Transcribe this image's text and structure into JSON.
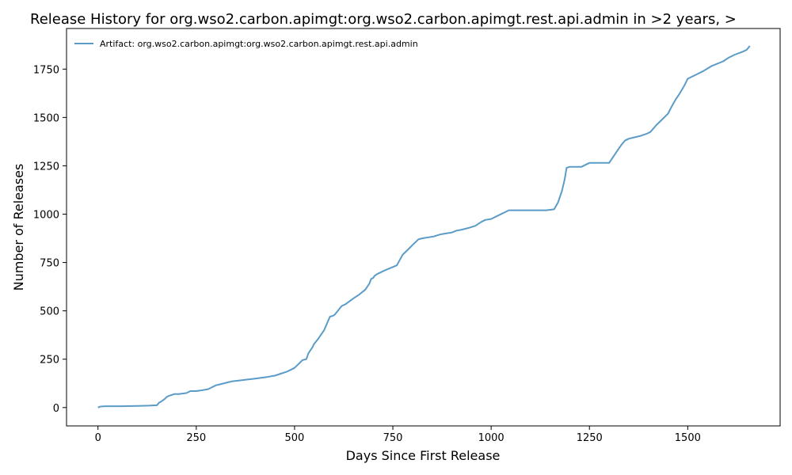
{
  "chart_data": {
    "type": "line",
    "title": "Release History for org.wso2.carbon.apimgt:org.wso2.carbon.apimgt.rest.api.admin in >2 years, >",
    "xlabel": "Days Since First Release",
    "ylabel": "Number of Releases",
    "xlim": [
      -80,
      1735
    ],
    "ylim": [
      -95,
      1960
    ],
    "x_ticks": [
      0,
      250,
      500,
      750,
      1000,
      1250,
      1500
    ],
    "y_ticks": [
      0,
      250,
      500,
      750,
      1000,
      1250,
      1500,
      1750
    ],
    "x_tick_labels": [
      "0",
      "250",
      "500",
      "750",
      "1000",
      "1250",
      "1500"
    ],
    "y_tick_labels": [
      "0",
      "250",
      "500",
      "750",
      "1000",
      "1250",
      "1500",
      "1750"
    ],
    "grid": false,
    "legend_position": "top-left",
    "series": [
      {
        "name": "Artifact: org.wso2.carbon.apimgt:org.wso2.carbon.apimgt.rest.api.admin",
        "color": "#5b9bc8",
        "x": [
          0,
          5,
          20,
          60,
          100,
          130,
          150,
          155,
          160,
          170,
          175,
          180,
          195,
          205,
          225,
          235,
          250,
          260,
          280,
          285,
          300,
          310,
          330,
          340,
          360,
          380,
          400,
          420,
          430,
          450,
          465,
          480,
          490,
          500,
          505,
          515,
          520,
          530,
          535,
          540,
          545,
          550,
          560,
          575,
          590,
          598,
          602,
          606,
          612,
          620,
          630,
          640,
          650,
          665,
          680,
          690,
          695,
          700,
          703,
          710,
          720,
          730,
          760,
          775,
          780,
          790,
          800,
          815,
          825,
          840,
          855,
          870,
          885,
          900,
          912,
          925,
          945,
          960,
          975,
          985,
          1000,
          1020,
          1035,
          1045,
          1050,
          1100,
          1140,
          1160,
          1170,
          1180,
          1187,
          1192,
          1200,
          1230,
          1240,
          1250,
          1270,
          1300,
          1310,
          1320,
          1330,
          1340,
          1350,
          1380,
          1395,
          1405,
          1420,
          1440,
          1450,
          1460,
          1470,
          1480,
          1490,
          1495,
          1500,
          1520,
          1540,
          1560,
          1590,
          1605,
          1620,
          1640,
          1650,
          1658
        ],
        "y": [
          0,
          5,
          7,
          7,
          8,
          10,
          12,
          25,
          30,
          45,
          55,
          60,
          70,
          70,
          75,
          85,
          85,
          88,
          95,
          100,
          115,
          120,
          130,
          135,
          140,
          145,
          150,
          155,
          158,
          165,
          175,
          185,
          195,
          205,
          215,
          235,
          245,
          250,
          280,
          295,
          310,
          330,
          355,
          400,
          470,
          475,
          480,
          490,
          505,
          525,
          535,
          550,
          565,
          585,
          610,
          640,
          665,
          670,
          680,
          690,
          700,
          710,
          735,
          790,
          800,
          820,
          840,
          870,
          875,
          880,
          885,
          895,
          900,
          905,
          915,
          920,
          930,
          940,
          960,
          970,
          975,
          995,
          1010,
          1020,
          1020,
          1020,
          1020,
          1025,
          1060,
          1120,
          1180,
          1240,
          1245,
          1245,
          1255,
          1265,
          1265,
          1265,
          1295,
          1325,
          1355,
          1380,
          1390,
          1405,
          1415,
          1425,
          1460,
          1500,
          1520,
          1560,
          1595,
          1625,
          1660,
          1680,
          1700,
          1720,
          1740,
          1765,
          1790,
          1810,
          1825,
          1840,
          1850,
          1870
        ]
      }
    ]
  }
}
